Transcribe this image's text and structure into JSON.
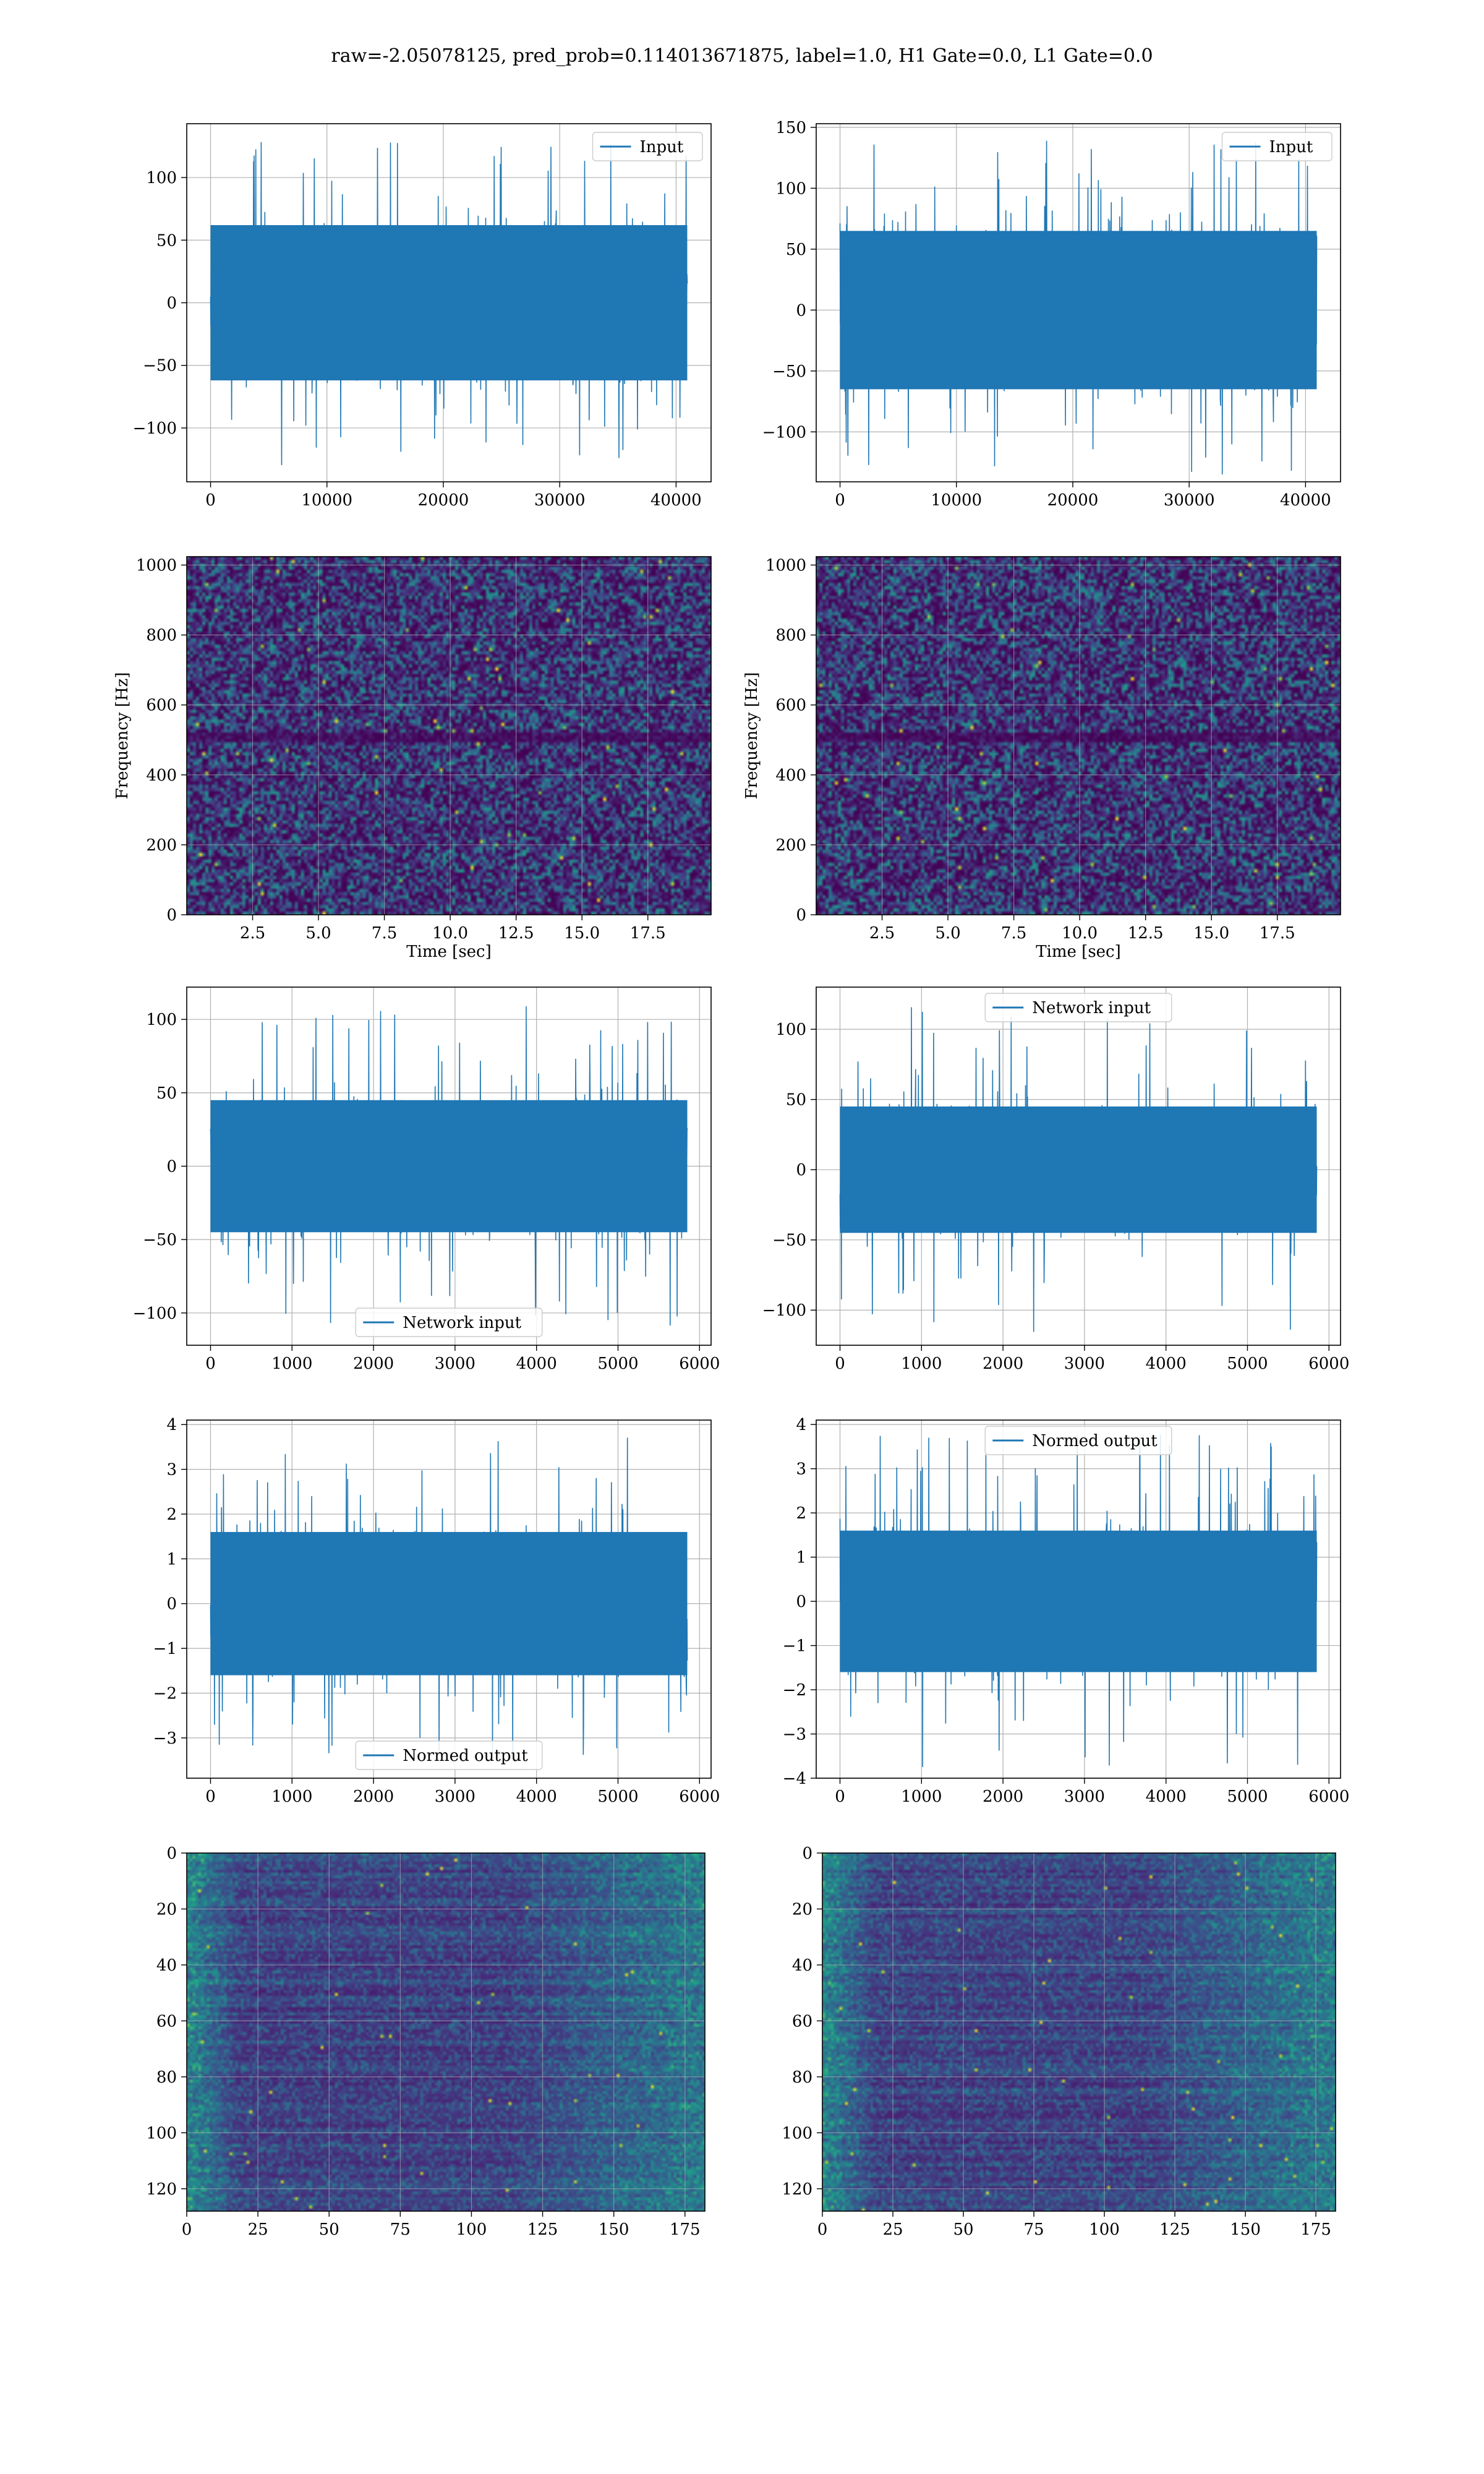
{
  "suptitle": "raw=-2.05078125, pred_prob=0.114013671875, label=1.0, H1 Gate=0.0, L1 Gate=0.0",
  "colors": {
    "line": "#1f77b4",
    "grid": "#b0b0b0",
    "axes": "#000000"
  },
  "chart_data": [
    {
      "type": "line",
      "id": "input-h1",
      "series": [
        {
          "name": "Input",
          "values_summary": "dense noise, typical envelope ±70, peaks to ±135"
        }
      ],
      "x_range": [
        0,
        40960
      ],
      "xlim": [
        -2048,
        43008
      ],
      "ylim": [
        -143,
        143
      ],
      "xticks": [
        "0",
        "10000",
        "20000",
        "30000",
        "40000"
      ],
      "yticks": [
        "100",
        "50",
        "0",
        "−50",
        "−100"
      ],
      "amplitude": {
        "core": 62,
        "peak": 135
      },
      "grid": true,
      "legend": "upper-right"
    },
    {
      "type": "line",
      "id": "input-l1",
      "series": [
        {
          "name": "Input",
          "values_summary": "dense noise, typical envelope ±70, peaks to ±140"
        }
      ],
      "x_range": [
        0,
        40960
      ],
      "xlim": [
        -2048,
        43008
      ],
      "ylim": [
        -141,
        153
      ],
      "xticks": [
        "0",
        "10000",
        "20000",
        "30000",
        "40000"
      ],
      "yticks": [
        "150",
        "100",
        "50",
        "0",
        "−50",
        "−100"
      ],
      "amplitude": {
        "core": 65,
        "peak": 140
      },
      "grid": true,
      "legend": "upper-right"
    },
    {
      "type": "heatmap",
      "id": "spectrogram-h1",
      "xlabel": "Time [sec]",
      "ylabel": "Frequency [Hz]",
      "xlim": [
        0,
        19.9
      ],
      "ylim": [
        0,
        1024
      ],
      "xticks": [
        "2.5",
        "5.0",
        "7.5",
        "10.0",
        "12.5",
        "15.0",
        "17.5"
      ],
      "yticks": [
        "1000",
        "800",
        "600",
        "400",
        "200",
        "0"
      ],
      "colormap": "viridis",
      "grid": true
    },
    {
      "type": "heatmap",
      "id": "spectrogram-l1",
      "xlabel": "Time [sec]",
      "ylabel": "Frequency [Hz]",
      "xlim": [
        0,
        19.9
      ],
      "ylim": [
        0,
        1024
      ],
      "xticks": [
        "2.5",
        "5.0",
        "7.5",
        "10.0",
        "12.5",
        "15.0",
        "17.5"
      ],
      "yticks": [
        "1000",
        "800",
        "600",
        "400",
        "200",
        "0"
      ],
      "colormap": "viridis",
      "grid": true
    },
    {
      "type": "line",
      "id": "network-input-h1",
      "series": [
        {
          "name": "Network input",
          "values_summary": "dense noise, envelope ±50, peaks to ±110"
        }
      ],
      "x_range": [
        0,
        5850
      ],
      "xlim": [
        -292,
        6142
      ],
      "ylim": [
        -122,
        122
      ],
      "xticks": [
        "0",
        "1000",
        "2000",
        "3000",
        "4000",
        "5000",
        "6000"
      ],
      "yticks": [
        "100",
        "50",
        "0",
        "−50",
        "−100"
      ],
      "amplitude": {
        "core": 45,
        "peak": 110
      },
      "grid": true,
      "legend": "lower-center"
    },
    {
      "type": "line",
      "id": "network-input-l1",
      "series": [
        {
          "name": "Network input",
          "values_summary": "dense noise, envelope ±50, peaks to ±118"
        }
      ],
      "x_range": [
        0,
        5850
      ],
      "xlim": [
        -292,
        6142
      ],
      "ylim": [
        -125,
        130
      ],
      "xticks": [
        "0",
        "1000",
        "2000",
        "3000",
        "4000",
        "5000",
        "6000"
      ],
      "yticks": [
        "100",
        "50",
        "0",
        "−50",
        "−100"
      ],
      "amplitude": {
        "core": 45,
        "peak": 118
      },
      "grid": true,
      "legend": "upper-center"
    },
    {
      "type": "line",
      "id": "normed-output-h1",
      "series": [
        {
          "name": "Normed output",
          "values_summary": "dense noise, envelope ±1.8, peaks to ±3.7"
        }
      ],
      "x_range": [
        0,
        5850
      ],
      "xlim": [
        -292,
        6142
      ],
      "ylim": [
        -3.9,
        4.1
      ],
      "xticks": [
        "0",
        "1000",
        "2000",
        "3000",
        "4000",
        "5000",
        "6000"
      ],
      "yticks": [
        "4",
        "3",
        "2",
        "1",
        "0",
        "−1",
        "−2",
        "−3"
      ],
      "amplitude": {
        "core": 1.6,
        "peak": 3.7
      },
      "grid": true,
      "legend": "lower-center"
    },
    {
      "type": "line",
      "id": "normed-output-l1",
      "series": [
        {
          "name": "Normed output",
          "values_summary": "dense noise, envelope ±1.8, peaks to ±3.8"
        }
      ],
      "x_range": [
        0,
        5850
      ],
      "xlim": [
        -292,
        6142
      ],
      "ylim": [
        -4.0,
        4.1
      ],
      "xticks": [
        "0",
        "1000",
        "2000",
        "3000",
        "4000",
        "5000",
        "6000"
      ],
      "yticks": [
        "4",
        "3",
        "2",
        "1",
        "0",
        "−1",
        "−2",
        "−3",
        "−4"
      ],
      "amplitude": {
        "core": 1.6,
        "peak": 3.8
      },
      "grid": true,
      "legend": "upper-center"
    },
    {
      "type": "heatmap",
      "id": "features-h1",
      "xlim": [
        0,
        182
      ],
      "ylim": [
        128,
        0
      ],
      "xticks": [
        "0",
        "25",
        "50",
        "75",
        "100",
        "125",
        "150",
        "175"
      ],
      "yticks": [
        "0",
        "20",
        "40",
        "60",
        "80",
        "100",
        "120"
      ],
      "colormap": "viridis",
      "grid": true
    },
    {
      "type": "heatmap",
      "id": "features-l1",
      "xlim": [
        0,
        182
      ],
      "ylim": [
        128,
        0
      ],
      "xticks": [
        "0",
        "25",
        "50",
        "75",
        "100",
        "125",
        "150",
        "175"
      ],
      "yticks": [
        "0",
        "20",
        "40",
        "60",
        "80",
        "100",
        "120"
      ],
      "colormap": "viridis",
      "grid": true
    }
  ]
}
